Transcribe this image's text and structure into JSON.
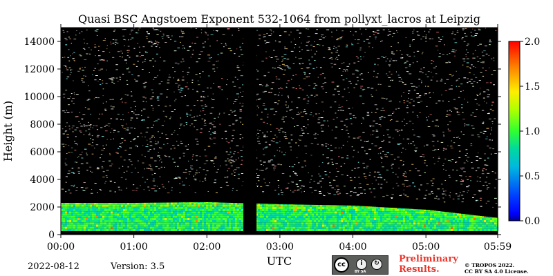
{
  "chart_data": {
    "type": "heatmap",
    "title": "Quasi BSC Angstoem Exponent 532-1064 from pollyxt_lacros at Leipzig",
    "xlabel": "UTC",
    "ylabel": "Height (m)",
    "x_ticks": [
      "00:00",
      "01:00",
      "02:00",
      "03:00",
      "04:00",
      "05:00",
      "05:59"
    ],
    "x_tick_hours": [
      0,
      1,
      2,
      3,
      4,
      5,
      5.983
    ],
    "xlim_hours": [
      0,
      5.983
    ],
    "y_ticks": [
      0,
      2000,
      4000,
      6000,
      8000,
      10000,
      12000,
      14000
    ],
    "ylim": [
      0,
      15000
    ],
    "colorbar": {
      "range": [
        0.0,
        2.0
      ],
      "ticks": [
        "0.0",
        "0.5",
        "1.0",
        "1.5",
        "2.0"
      ],
      "tick_values": [
        0.0,
        0.5,
        1.0,
        1.5,
        2.0
      ],
      "colormap": "jet"
    },
    "data_gap_hours": [
      2.5,
      2.68
    ],
    "aerosol_layer": {
      "top_height_m": [
        [
          0,
          2300
        ],
        [
          1,
          2300
        ],
        [
          2,
          2350
        ],
        [
          3,
          2200
        ],
        [
          4,
          2100
        ],
        [
          5,
          1800
        ],
        [
          5.983,
          1200
        ]
      ],
      "typical_value": 0.75,
      "value_range": [
        0.4,
        1.1
      ]
    },
    "noise_background": "black",
    "grid": false
  },
  "footer": {
    "date": "2022-08-12",
    "version": "Version: 3.5",
    "license_badge_text": "BY SA",
    "preliminary_line1": "Preliminary",
    "preliminary_line2": "Results.",
    "copyright_line1": "© TROPOS 2022.",
    "copyright_line2": "CC BY SA 4.0 License."
  }
}
